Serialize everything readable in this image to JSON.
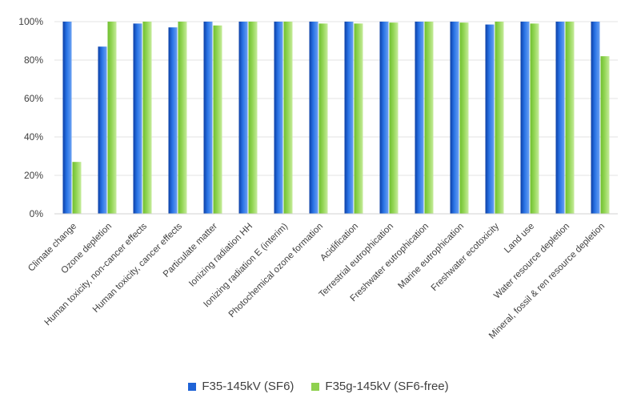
{
  "chart_data": {
    "type": "bar",
    "categories": [
      "Climate change",
      "Ozone depletion",
      "Human toxicity, non-cancer effects",
      "Human toxicity, cancer effects",
      "Particulate matter",
      "Ionizing radiation HH",
      "Ionizing radiation E (interim)",
      "Photochemical ozone formation",
      "Acidification",
      "Terrestrial eutrophication",
      "Freshwater eutrophication",
      "Marine eutrophication",
      "Freshwater ecotoxicity",
      "Land use",
      "Water resource depletion",
      "Mineral, fossil & ren resource depletion"
    ],
    "series": [
      {
        "name": "F35-145kV (SF6)",
        "color": "#1f63d6",
        "values": [
          100,
          87,
          99,
          97,
          100,
          100,
          100,
          100,
          100,
          100,
          100,
          100,
          98.5,
          100,
          100,
          100
        ]
      },
      {
        "name": "F35g-145kV (SF6-free)",
        "color": "#8fd14f",
        "values": [
          27,
          100,
          100,
          100,
          98,
          100,
          100,
          99,
          99,
          99.5,
          100,
          99.5,
          100,
          99,
          100,
          82
        ]
      }
    ],
    "y_ticks": [
      "0%",
      "20%",
      "40%",
      "60%",
      "80%",
      "100%"
    ],
    "ylim": [
      0,
      100
    ],
    "grid": true,
    "legend_position": "bottom"
  }
}
